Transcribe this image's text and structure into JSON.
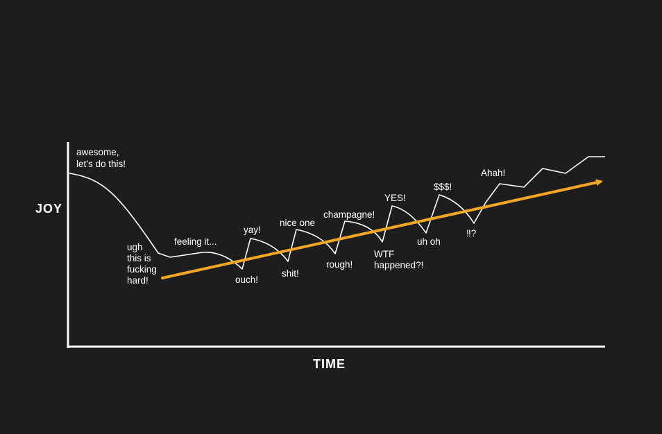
{
  "axes": {
    "y_label": "JOY",
    "x_label": "TIME"
  },
  "colors": {
    "background": "#1d1d1d",
    "axis": "#ffffff",
    "curve": "#ffffff",
    "trend": "#f5a623"
  },
  "annotations": {
    "awesome": [
      "awesome,",
      "let’s do this!"
    ],
    "ugh": [
      "ugh",
      "this is",
      "fucking",
      "hard!"
    ],
    "feeling": [
      "feeling it..."
    ],
    "yay": [
      "yay!"
    ],
    "ouch": [
      "ouch!"
    ],
    "nice_one": [
      "nice one"
    ],
    "shit": [
      "shit!"
    ],
    "champagne": [
      "champagne!"
    ],
    "rough": [
      "rough!"
    ],
    "yes": [
      "YES!"
    ],
    "wtf": [
      "WTF",
      "happened?!"
    ],
    "dollars": [
      "$$$!"
    ],
    "uh_oh": [
      "uh oh"
    ],
    "question": [
      "‼?"
    ],
    "ahah": [
      "Ahah!"
    ]
  }
}
